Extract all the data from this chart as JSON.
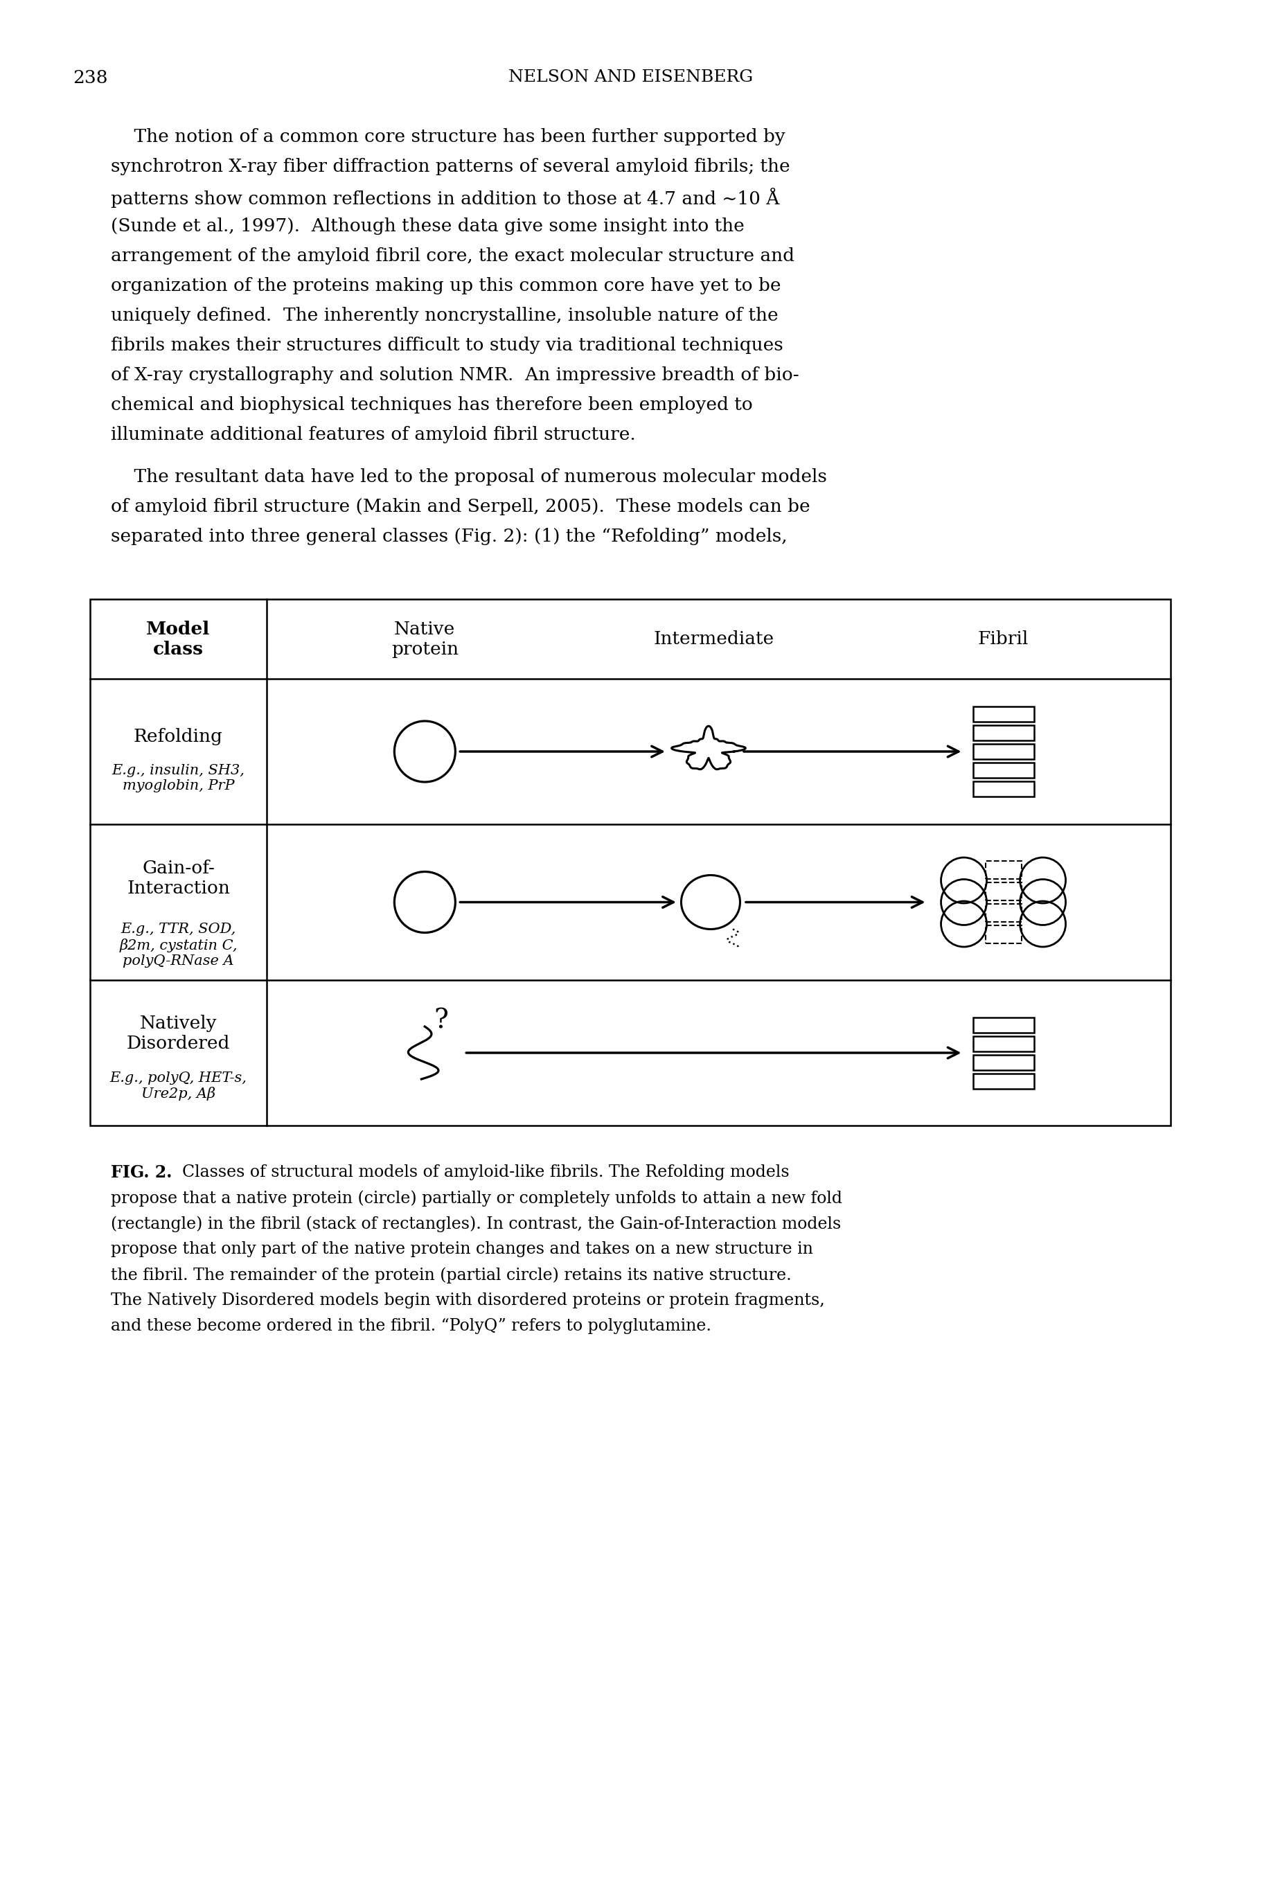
{
  "page_number": "238",
  "header": "NELSON AND EISENBERG",
  "para1_lines": [
    "    The notion of a common core structure has been further supported by",
    "synchrotron X-ray fiber diffraction patterns of several amyloid fibrils; the",
    "patterns show common reflections in addition to those at 4.7 and ~10 Å",
    "(Sunde et al., 1997).  Although these data give some insight into the",
    "arrangement of the amyloid fibril core, the exact molecular structure and",
    "organization of the proteins making up this common core have yet to be",
    "uniquely defined.  The inherently noncrystalline, insoluble nature of the",
    "fibrils makes their structures difficult to study via traditional techniques",
    "of X-ray crystallography and solution NMR.  An impressive breadth of bio-",
    "chemical and biophysical techniques has therefore been employed to",
    "illuminate additional features of amyloid fibril structure."
  ],
  "para2_lines": [
    "    The resultant data have led to the proposal of numerous molecular models",
    "of amyloid fibril structure (Makin and Serpell, 2005).  These models can be",
    "separated into three general classes (Fig. 2): (1) the “Refolding” models,"
  ],
  "row_labels": [
    "Refolding",
    "Gain-of-\nInteraction",
    "Natively\nDisordered"
  ],
  "row_sublabels": [
    "E.g., insulin, SH3,\nmyoglobin, PrP",
    "E.g., TTR, SOD,\nβ2m, cystatin C,\npolyQ-RNase A",
    "E.g., polyQ, HET-s,\nUre2p, Aβ"
  ],
  "col_headers": [
    "Native\nprotein",
    "Intermediate",
    "Fibril"
  ],
  "cap_lines": [
    "Classes of structural models of amyloid-like fibrils. The Refolding models",
    "propose that a native protein (circle) partially or completely unfolds to attain a new fold",
    "(rectangle) in the fibril (stack of rectangles). In contrast, the Gain-of-Interaction models",
    "propose that only part of the native protein changes and takes on a new structure in",
    "the fibril. The remainder of the protein (partial circle) retains its native structure.",
    "The Natively Disordered models begin with disordered proteins or protein fragments,",
    "and these become ordered in the fibril. “PolyQ” refers to polyglutamine."
  ],
  "bg_color": "#ffffff",
  "text_color": "#000000"
}
